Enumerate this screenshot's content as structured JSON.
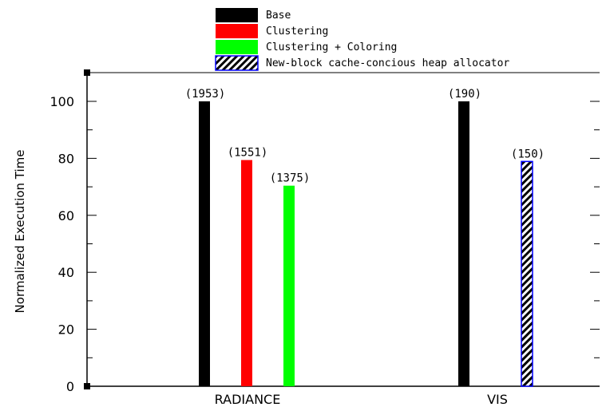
{
  "chart_data": {
    "type": "bar",
    "title": "",
    "xlabel": "",
    "ylabel": "Normalized Execution Time",
    "ylim": [
      0,
      110
    ],
    "yticks": [
      0,
      20,
      40,
      60,
      80,
      100
    ],
    "grid": false,
    "legend_position": "top",
    "categories": [
      "RADIANCE",
      "VIS"
    ],
    "series": [
      {
        "name": "Base",
        "color": "#000000",
        "pattern": "solid",
        "values": [
          100,
          100
        ],
        "labels": [
          "(1953)",
          "(190)"
        ]
      },
      {
        "name": "Clustering",
        "color": "#ff0000",
        "pattern": "solid",
        "values": [
          79.4,
          null
        ],
        "labels": [
          "(1551)",
          ""
        ]
      },
      {
        "name": "Clustering + Coloring",
        "color": "#00ff00",
        "pattern": "solid",
        "values": [
          70.4,
          null
        ],
        "labels": [
          "(1375)",
          ""
        ]
      },
      {
        "name": "New-block cache-concious heap allocator",
        "color": "#000000",
        "pattern": "hatched",
        "border_color": "#0000ff",
        "values": [
          null,
          78.9
        ],
        "labels": [
          "",
          "(150)"
        ]
      }
    ]
  }
}
